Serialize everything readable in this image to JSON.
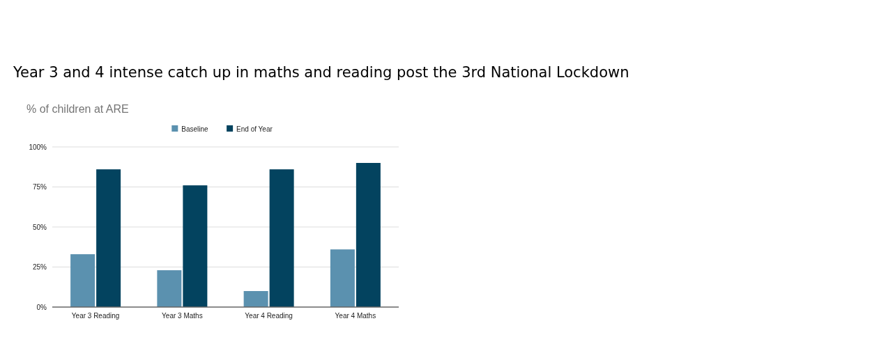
{
  "chart_data": {
    "type": "bar",
    "title": "Year 3 and 4 intense catch up in maths and reading post the 3rd National Lockdown",
    "subtitle": "% of children at ARE",
    "categories": [
      "Year 3 Reading",
      "Year 3 Maths",
      "Year 4 Reading",
      "Year 4 Maths"
    ],
    "series": [
      {
        "name": "Baseline",
        "color": "#5b91af",
        "values": [
          33,
          23,
          10,
          36
        ]
      },
      {
        "name": "End of Year",
        "color": "#03435f",
        "values": [
          86,
          76,
          86,
          90
        ]
      }
    ],
    "ylim": [
      0,
      100
    ],
    "yticks": [
      {
        "value": 0,
        "label": "0%"
      },
      {
        "value": 25,
        "label": "25%"
      },
      {
        "value": 50,
        "label": "50%"
      },
      {
        "value": 75,
        "label": "75%"
      },
      {
        "value": 100,
        "label": "100%"
      }
    ],
    "grid": "y",
    "legend": "top"
  }
}
